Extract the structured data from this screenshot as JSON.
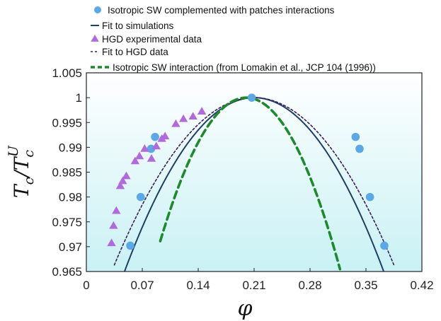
{
  "chart_data": {
    "type": "scatter",
    "xlabel": "φ",
    "ylabel_main": "T",
    "ylabel_main_sub": "c",
    "ylabel_ref": "T",
    "ylabel_ref_sub": "c",
    "ylabel_ref_sup": "U",
    "xlim": [
      0,
      0.42
    ],
    "ylim": [
      0.965,
      1.005
    ],
    "x_ticks": [
      0,
      0.07,
      0.14,
      0.21,
      0.28,
      0.35,
      0.42
    ],
    "x_tick_labels": [
      "0",
      "0.07",
      "0.14",
      "0.21",
      "0.28",
      "0.35",
      "0.42"
    ],
    "y_ticks": [
      0.965,
      0.97,
      0.975,
      0.98,
      0.985,
      0.99,
      0.995,
      1,
      1.005
    ],
    "y_tick_labels": [
      "0.965",
      "0.97",
      "0.975",
      "0.98",
      "0.985",
      "0.99",
      "0.995",
      "1",
      "1.005"
    ],
    "background_gradient": [
      "#ffffff",
      "#c9f1f4"
    ],
    "legend_position": "top",
    "series": [
      {
        "name": "Isotropic SW complemented with patches interactions",
        "kind": "circles",
        "color": "#5aa9e6",
        "points": [
          [
            0.055,
            0.9702
          ],
          [
            0.068,
            0.98
          ],
          [
            0.081,
            0.9897
          ],
          [
            0.086,
            0.9921
          ],
          [
            0.207,
            1.0
          ],
          [
            0.337,
            0.9921
          ],
          [
            0.342,
            0.9897
          ],
          [
            0.355,
            0.98
          ],
          [
            0.373,
            0.9702
          ]
        ]
      },
      {
        "name": "Fit to simulations",
        "kind": "line",
        "color": "#1e3f66",
        "curve": {
          "x0": 0.21,
          "amp": 1.0,
          "coef": 1.33,
          "x_from": 0.0455,
          "x_to": 0.3785
        }
      },
      {
        "name": "HGD experimental data",
        "kind": "triangles",
        "color": "#b169dd",
        "points": [
          [
            0.0315,
            0.9707
          ],
          [
            0.034,
            0.9742
          ],
          [
            0.0375,
            0.9772
          ],
          [
            0.0425,
            0.9822
          ],
          [
            0.0455,
            0.9832
          ],
          [
            0.05,
            0.9842
          ],
          [
            0.061,
            0.9872
          ],
          [
            0.0665,
            0.9882
          ],
          [
            0.073,
            0.9897
          ],
          [
            0.0815,
            0.9877
          ],
          [
            0.0875,
            0.9902
          ],
          [
            0.0945,
            0.9917
          ],
          [
            0.0985,
            0.9922
          ],
          [
            0.112,
            0.9947
          ],
          [
            0.1215,
            0.9957
          ],
          [
            0.1335,
            0.9962
          ],
          [
            0.1445,
            0.9972
          ]
        ]
      },
      {
        "name": "Fit to HGD data",
        "kind": "dotted-line",
        "color": "#3a1f5c",
        "curve": {
          "x0": 0.21,
          "amp": 1.0,
          "coef": 1.1,
          "x_from": 0.035,
          "x_to": 0.385
        }
      },
      {
        "name": "Isotropic SW interaction (from Lomakin et al., JCP 104 (1996))",
        "kind": "dashed-line",
        "color": "#1d8a2b",
        "curve": {
          "x0": 0.2,
          "amp": 1.0,
          "coef": 2.5,
          "x_from": 0.0925,
          "x_to": 0.3175
        }
      }
    ]
  }
}
